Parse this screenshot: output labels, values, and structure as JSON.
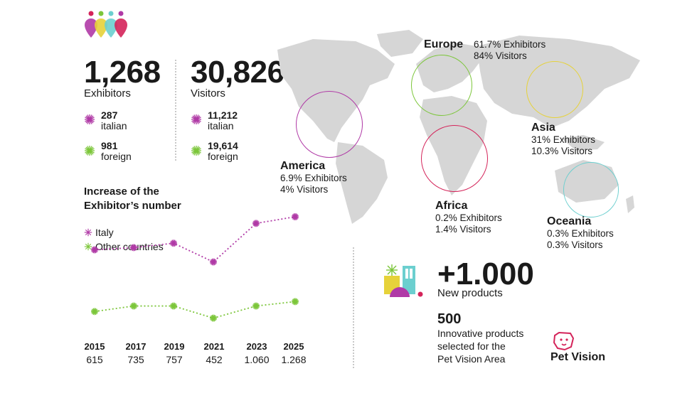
{
  "stats": {
    "exhibitors": {
      "value": "1,268",
      "label": "Exhibitors",
      "italian": {
        "value": "287",
        "label": "italian"
      },
      "foreign": {
        "value": "981",
        "label": "foreign"
      }
    },
    "visitors": {
      "value": "30,826",
      "label": "Visitors",
      "italian": {
        "value": "11,212",
        "label": "italian"
      },
      "foreign": {
        "value": "19,614",
        "label": "foreign"
      }
    }
  },
  "chart": {
    "title_line1": "Increase of the",
    "title_line2": "Exhibitor’s number",
    "legend": [
      {
        "label": "Italy",
        "color": "#b03aa6"
      },
      {
        "label": "Other countries",
        "color": "#7cc63a"
      }
    ],
    "years": [
      "2015",
      "2017",
      "2019",
      "2021",
      "2023",
      "2025"
    ],
    "totals": [
      "615",
      "735",
      "757",
      "452",
      "1.060",
      "1.268"
    ]
  },
  "chart_data": {
    "type": "line",
    "x": [
      "2015",
      "2017",
      "2019",
      "2021",
      "2023",
      "2025"
    ],
    "series": [
      {
        "name": "Italy",
        "values": [
          70,
          72,
          76,
          59,
          94,
          100
        ]
      },
      {
        "name": "Other countries",
        "values": [
          14,
          19,
          19,
          8,
          19,
          23
        ]
      }
    ],
    "ylim": [
      0,
      100
    ]
  },
  "regions": {
    "europe": {
      "name": "Europe",
      "line1": "61.7% Exhibitors",
      "line2": "84% Visitors",
      "color": "#7cc63a"
    },
    "america": {
      "name": "America",
      "line1": "6.9% Exhibitors",
      "line2": "4% Visitors",
      "color": "#b03aa6"
    },
    "asia": {
      "name": "Asia",
      "line1": "31% Exhibitors",
      "line2": "10.3% Visitors",
      "color": "#e6d23a"
    },
    "africa": {
      "name": "Africa",
      "line1": "0.2% Exhibitors",
      "line2": "1.4% Visitors",
      "color": "#d4245a"
    },
    "oceania": {
      "name": "Oceania",
      "line1": "0.3% Exhibitors",
      "line2": "0.3% Visitors",
      "color": "#6ccfcf"
    }
  },
  "products": {
    "new_value": "+1.000",
    "new_label": "New products",
    "innovative_value": "500",
    "innovative_line1": "Innovative products",
    "innovative_line2": "selected for the",
    "innovative_line3": "Pet Vision Area",
    "pet_vision_label": "Pet Vision"
  },
  "colors": {
    "italy": "#b03aa6",
    "foreign": "#7cc63a",
    "map": "#d6d6d6"
  }
}
